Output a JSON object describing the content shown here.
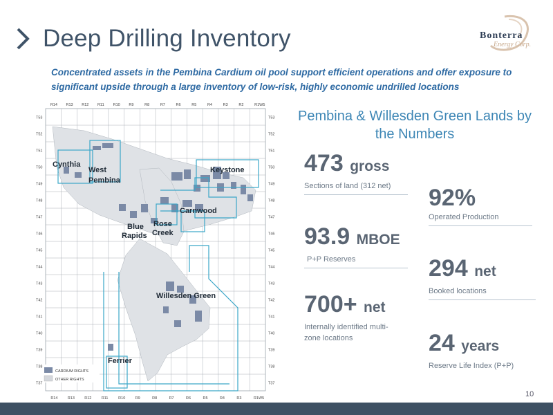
{
  "title": "Deep Drilling Inventory",
  "logo": {
    "name": "Bonterra",
    "sub": "Energy Corp."
  },
  "subtitle": "Concentrated assets in the Pembina Cardium oil pool support efficient operations and offer exposure to significant upside through a large inventory of low-risk, highly economic undrilled locations",
  "map": {
    "range_labels": [
      "R14",
      "R13",
      "R12",
      "R11",
      "R10",
      "R9",
      "R8",
      "R7",
      "R6",
      "R5",
      "R4",
      "R3",
      "R2",
      "R1W5"
    ],
    "bottom_range_labels": [
      "R14",
      "R13",
      "R12",
      "R11",
      "R10",
      "R9",
      "R8",
      "R7",
      "R6",
      "R5",
      "R4",
      "R3",
      "R1W5"
    ],
    "township_labels": [
      "T53",
      "T52",
      "T51",
      "T50",
      "T49",
      "T48",
      "T47",
      "T46",
      "T45",
      "T44",
      "T43",
      "T42",
      "T41",
      "T40",
      "T39",
      "T38",
      "T37"
    ],
    "areas": {
      "cynthia": "Cynthia",
      "west_pembina": "West Pembina",
      "keystone": "Keystone",
      "carnwood": "Carnwood",
      "blue_rapids": "Blue Rapids",
      "rose_creek": "Rose Creek",
      "willesden_green": "Willesden Green",
      "ferrier": "Ferrier"
    },
    "legend": {
      "cardium": "CARDIUM RIGHTS",
      "other": "OTHER RIGHTS"
    },
    "colors": {
      "cardium": "#7b8aa6",
      "other": "#d5d8dd",
      "outline": "#3aa6c8"
    }
  },
  "stats_title": "Pembina & Willesden Green Lands by the Numbers",
  "stats": {
    "gross": {
      "value": "473",
      "unit": "gross",
      "label": "Sections of land (312 net)"
    },
    "operated": {
      "value": "92%",
      "label": "Operated Production"
    },
    "mboe": {
      "value": "93.9",
      "unit": "MBOE",
      "label": "P+P Reserves"
    },
    "booked": {
      "value": "294",
      "unit": "net",
      "label": "Booked locations"
    },
    "net700": {
      "value": "700+",
      "unit": "net",
      "label": "Internally identified multi-zone locations"
    },
    "years": {
      "value": "24",
      "unit": "years",
      "label": "Reserve Life Index (P+P)"
    }
  },
  "page_number": "10"
}
